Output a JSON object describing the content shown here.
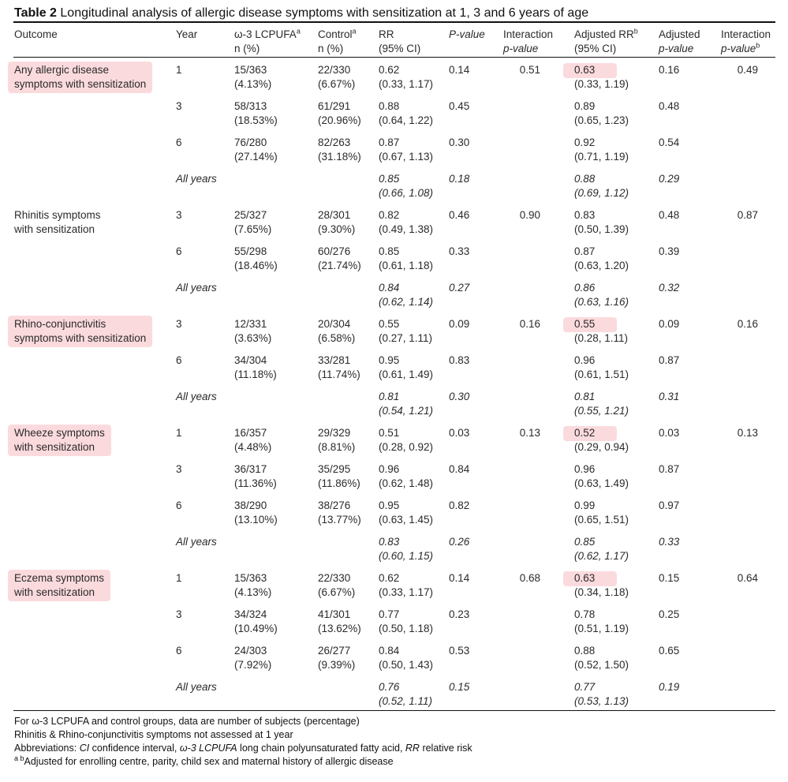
{
  "caption": {
    "label": "Table 2",
    "text": "Longitudinal analysis of allergic disease symptoms with sensitization at 1, 3 and 6 years of age"
  },
  "columns": [
    {
      "lines": [
        "Outcome"
      ]
    },
    {
      "lines": [
        "Year"
      ]
    },
    {
      "lines": [
        "ω-3 LCPUFA",
        "n (%)"
      ],
      "sup": "a"
    },
    {
      "lines": [
        "Control",
        "n (%)"
      ],
      "sup": "a"
    },
    {
      "lines": [
        "RR",
        "(95% CI)"
      ]
    },
    {
      "lines": [
        "P-value"
      ]
    },
    {
      "lines": [
        "Interaction",
        "p-value"
      ]
    },
    {
      "lines": [
        "Adjusted RR",
        "(95% CI)"
      ],
      "sup": "b"
    },
    {
      "lines": [
        "Adjusted",
        "p-value"
      ]
    },
    {
      "lines": [
        "Interaction",
        "p-value"
      ],
      "sup": "b"
    }
  ],
  "groups": [
    {
      "outcome": [
        "Any allergic disease",
        "symptoms with sensitization"
      ],
      "highlight": true,
      "interaction_p": "0.51",
      "adjusted_interaction_p": "0.49",
      "rows": [
        {
          "year": "1",
          "omega": [
            "15/363",
            "(4.13%)"
          ],
          "control": [
            "22/330",
            "(6.67%)"
          ],
          "rr": [
            "0.62",
            "(0.33, 1.17)"
          ],
          "p": "0.14",
          "arr": [
            "0.63",
            "(0.33, 1.19)"
          ],
          "adj_p": "0.16"
        },
        {
          "year": "3",
          "omega": [
            "58/313",
            "(18.53%)"
          ],
          "control": [
            "61/291",
            "(20.96%)"
          ],
          "rr": [
            "0.88",
            "(0.64, 1.22)"
          ],
          "p": "0.45",
          "arr": [
            "0.89",
            "(0.65, 1.23)"
          ],
          "adj_p": "0.48"
        },
        {
          "year": "6",
          "omega": [
            "76/280",
            "(27.14%)"
          ],
          "control": [
            "82/263",
            "(31.18%)"
          ],
          "rr": [
            "0.87",
            "(0.67, 1.13)"
          ],
          "p": "0.30",
          "arr": [
            "0.92",
            "(0.71, 1.19)"
          ],
          "adj_p": "0.54"
        },
        {
          "year": "All years",
          "rr": [
            "0.85",
            "(0.66, 1.08)"
          ],
          "p": "0.18",
          "arr": [
            "0.88",
            "(0.69, 1.12)"
          ],
          "adj_p": "0.29"
        }
      ]
    },
    {
      "outcome": [
        "Rhinitis symptoms",
        "with sensitization"
      ],
      "highlight": false,
      "interaction_p": "0.90",
      "adjusted_interaction_p": "0.87",
      "rows": [
        {
          "year": "3",
          "omega": [
            "25/327",
            "(7.65%)"
          ],
          "control": [
            "28/301",
            "(9.30%)"
          ],
          "rr": [
            "0.82",
            "(0.49, 1.38)"
          ],
          "p": "0.46",
          "arr": [
            "0.83",
            "(0.50, 1.39)"
          ],
          "adj_p": "0.48"
        },
        {
          "year": "6",
          "omega": [
            "55/298",
            "(18.46%)"
          ],
          "control": [
            "60/276",
            "(21.74%)"
          ],
          "rr": [
            "0.85",
            "(0.61, 1.18)"
          ],
          "p": "0.33",
          "arr": [
            "0.87",
            "(0.63, 1.20)"
          ],
          "adj_p": "0.39"
        },
        {
          "year": "All years",
          "rr": [
            "0.84",
            "(0.62, 1.14)"
          ],
          "p": "0.27",
          "arr": [
            "0.86",
            "(0.63, 1.16)"
          ],
          "adj_p": "0.32"
        }
      ]
    },
    {
      "outcome": [
        "Rhino-conjunctivitis",
        "symptoms with sensitization"
      ],
      "highlight": true,
      "interaction_p": "0.16",
      "adjusted_interaction_p": "0.16",
      "rows": [
        {
          "year": "3",
          "omega": [
            "12/331",
            "(3.63%)"
          ],
          "control": [
            "20/304",
            "(6.58%)"
          ],
          "rr": [
            "0.55",
            "(0.27, 1.11)"
          ],
          "p": "0.09",
          "arr": [
            "0.55",
            "(0.28, 1.11)"
          ],
          "adj_p": "0.09"
        },
        {
          "year": "6",
          "omega": [
            "34/304",
            "(11.18%)"
          ],
          "control": [
            "33/281",
            "(11.74%)"
          ],
          "rr": [
            "0.95",
            "(0.61, 1.49)"
          ],
          "p": "0.83",
          "arr": [
            "0.96",
            "(0.61, 1.51)"
          ],
          "adj_p": "0.87"
        },
        {
          "year": "All years",
          "rr": [
            "0.81",
            "(0.54, 1.21)"
          ],
          "p": "0.30",
          "arr": [
            "0.81",
            "(0.55, 1.21)"
          ],
          "adj_p": "0.31"
        }
      ]
    },
    {
      "outcome": [
        "Wheeze symptoms",
        "with sensitization"
      ],
      "highlight": true,
      "interaction_p": "0.13",
      "adjusted_interaction_p": "0.13",
      "rows": [
        {
          "year": "1",
          "omega": [
            "16/357",
            "(4.48%)"
          ],
          "control": [
            "29/329",
            "(8.81%)"
          ],
          "rr": [
            "0.51",
            "(0.28, 0.92)"
          ],
          "p": "0.03",
          "arr": [
            "0.52",
            "(0.29, 0.94)"
          ],
          "adj_p": "0.03"
        },
        {
          "year": "3",
          "omega": [
            "36/317",
            "(11.36%)"
          ],
          "control": [
            "35/295",
            "(11.86%)"
          ],
          "rr": [
            "0.96",
            "(0.62, 1.48)"
          ],
          "p": "0.84",
          "arr": [
            "0.96",
            "(0.63, 1.49)"
          ],
          "adj_p": "0.87"
        },
        {
          "year": "6",
          "omega": [
            "38/290",
            "(13.10%)"
          ],
          "control": [
            "38/276",
            "(13.77%)"
          ],
          "rr": [
            "0.95",
            "(0.63, 1.45)"
          ],
          "p": "0.82",
          "arr": [
            "0.99",
            "(0.65, 1.51)"
          ],
          "adj_p": "0.97"
        },
        {
          "year": "All years",
          "rr": [
            "0.83",
            "(0.60, 1.15)"
          ],
          "p": "0.26",
          "arr": [
            "0.85",
            "(0.62, 1.17)"
          ],
          "adj_p": "0.33"
        }
      ]
    },
    {
      "outcome": [
        "Eczema symptoms",
        "with sensitization"
      ],
      "highlight": true,
      "interaction_p": "0.68",
      "adjusted_interaction_p": "0.64",
      "rows": [
        {
          "year": "1",
          "omega": [
            "15/363",
            "(4.13%)"
          ],
          "control": [
            "22/330",
            "(6.67%)"
          ],
          "rr": [
            "0.62",
            "(0.33, 1.17)"
          ],
          "p": "0.14",
          "arr": [
            "0.63",
            "(0.34, 1.18)"
          ],
          "adj_p": "0.15"
        },
        {
          "year": "3",
          "omega": [
            "34/324",
            "(10.49%)"
          ],
          "control": [
            "41/301",
            "(13.62%)"
          ],
          "rr": [
            "0.77",
            "(0.50, 1.18)"
          ],
          "p": "0.23",
          "arr": [
            "0.78",
            "(0.51, 1.19)"
          ],
          "adj_p": "0.25"
        },
        {
          "year": "6",
          "omega": [
            "24/303",
            "(7.92%)"
          ],
          "control": [
            "26/277",
            "(9.39%)"
          ],
          "rr": [
            "0.84",
            "(0.50, 1.43)"
          ],
          "p": "0.53",
          "arr": [
            "0.88",
            "(0.52, 1.50)"
          ],
          "adj_p": "0.65"
        },
        {
          "year": "All years",
          "rr": [
            "0.76",
            "(0.52, 1.11)"
          ],
          "p": "0.15",
          "arr": [
            "0.77",
            "(0.53, 1.13)"
          ],
          "adj_p": "0.19"
        }
      ]
    }
  ],
  "footnotes": [
    [
      {
        "text": "For ω-3 LCPUFA and control groups, data are number of subjects (percentage)"
      }
    ],
    [
      {
        "text": "Rhinitis & Rhino-conjunctivitis symptoms not assessed at 1 year"
      }
    ],
    [
      {
        "text": "Abbreviations: "
      },
      {
        "text": "CI",
        "italic": true
      },
      {
        "text": " confidence interval, "
      },
      {
        "text": "ω-3 LCPUFA",
        "italic": true
      },
      {
        "text": " long chain polyunsaturated fatty acid, "
      },
      {
        "text": "RR",
        "italic": true
      },
      {
        "text": " relative risk"
      }
    ],
    [
      {
        "text": "a b",
        "sup": true
      },
      {
        "text": "Adjusted for enrolling centre, parity, child sex and maternal history of allergic disease"
      }
    ]
  ]
}
